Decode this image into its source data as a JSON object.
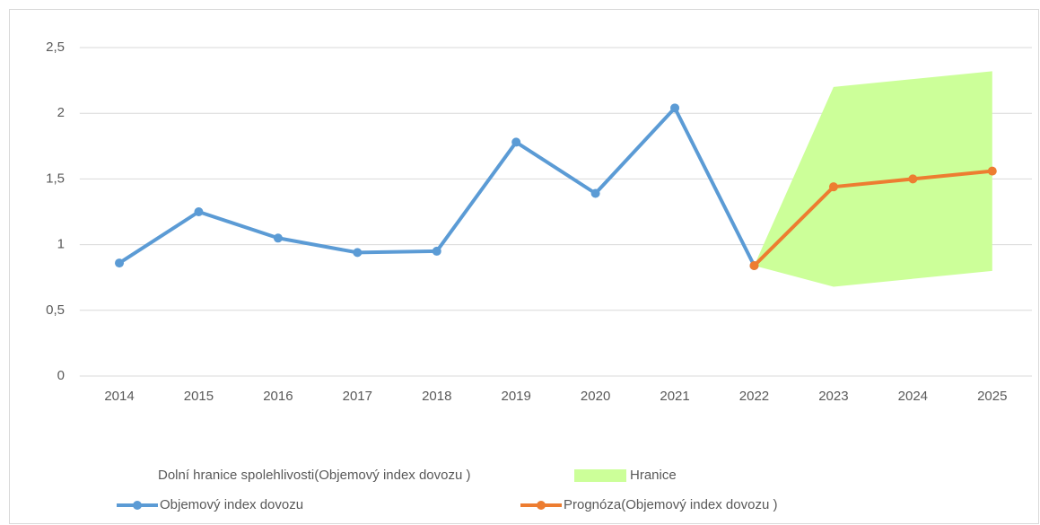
{
  "chart_data": {
    "type": "line",
    "categories": [
      "2014",
      "2015",
      "2016",
      "2017",
      "2018",
      "2019",
      "2020",
      "2021",
      "2022",
      "2023",
      "2024",
      "2025"
    ],
    "ylim": [
      0,
      2.5
    ],
    "yticks": [
      0,
      {
        "value": 0.5,
        "label": "0,5"
      },
      1,
      {
        "value": 1.5,
        "label": "1,5"
      },
      2,
      {
        "value": 2.5,
        "label": "2,5"
      }
    ],
    "grid": true,
    "legend": "bottom",
    "series": [
      {
        "name": "Dolní hranice spolehlivosti(Objemový index dovozu )",
        "type": "area",
        "stacked": true,
        "color": "transparent",
        "values": [
          null,
          null,
          null,
          null,
          null,
          null,
          null,
          null,
          0.84,
          0.68,
          0.74,
          0.8
        ]
      },
      {
        "name": "Hranice",
        "type": "area",
        "stacked": true,
        "color": "#ccff99",
        "values": [
          null,
          null,
          null,
          null,
          null,
          null,
          null,
          null,
          0,
          1.52,
          1.52,
          1.52
        ]
      },
      {
        "name": "Objemový index dovozu",
        "type": "line",
        "color": "#5b9bd5",
        "values": [
          0.86,
          1.25,
          1.05,
          0.94,
          0.95,
          1.78,
          1.39,
          2.04,
          0.84,
          null,
          null,
          null
        ]
      },
      {
        "name": "Prognóza(Objemový index dovozu )",
        "type": "line",
        "color": "#ed7d31",
        "values": [
          null,
          null,
          null,
          null,
          null,
          null,
          null,
          null,
          0.84,
          1.44,
          1.5,
          1.56
        ]
      }
    ]
  }
}
